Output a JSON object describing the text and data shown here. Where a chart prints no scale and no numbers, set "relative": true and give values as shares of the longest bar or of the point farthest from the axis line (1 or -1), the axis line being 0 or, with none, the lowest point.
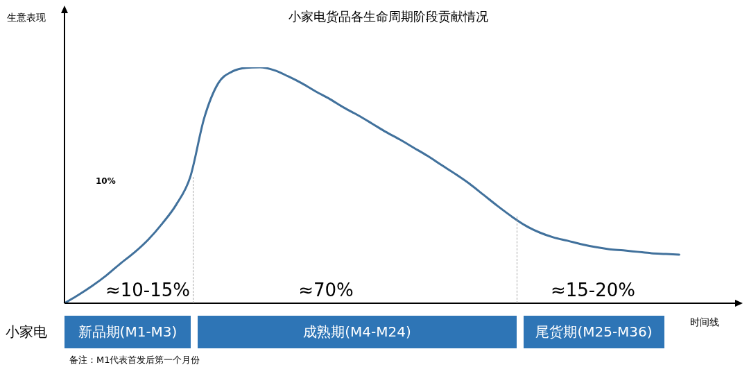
{
  "chart_data": {
    "type": "line",
    "relative": true,
    "title": "小家电货品各生命周期阶段贡献情况",
    "ylabel": "生意表现",
    "xlabel": "时间线",
    "categories": [
      null,
      null,
      null,
      null,
      null,
      null,
      null,
      null,
      null,
      null,
      null,
      null,
      null,
      null,
      null,
      null,
      null,
      null,
      null,
      null,
      null,
      null,
      null,
      null,
      null,
      null,
      null,
      null,
      null,
      null,
      null,
      null,
      null,
      null,
      null,
      null,
      null,
      null,
      null,
      null,
      null,
      null,
      null,
      null,
      null,
      null,
      null,
      null,
      null
    ],
    "series": [
      {
        "color": "#41719c",
        "values": [
          0,
          0.035,
          0.074,
          0.118,
          0.168,
          0.215,
          0.27,
          0.338,
          0.418,
          0.535,
          0.785,
          0.932,
          0.982,
          0.998,
          1,
          0.988,
          0.962,
          0.932,
          0.897,
          0.865,
          0.829,
          0.797,
          0.762,
          0.726,
          0.694,
          0.659,
          0.624,
          0.585,
          0.547,
          0.506,
          0.459,
          0.412,
          0.368,
          0.329,
          0.3,
          0.279,
          0.265,
          0.25,
          0.238,
          0.229,
          0.224,
          0.218,
          0.212,
          0.209,
          0.206,
          null,
          null,
          null,
          null
        ]
      }
    ],
    "marker": "none",
    "line_style": "solid",
    "legend": false,
    "annotations": [
      "10%",
      "≈10-15%",
      "≈70%",
      "≈15-20%",
      "小家电",
      "新品期(M1-M3)",
      "成熟期(M4-M24)",
      "尾货期(M25-M36)",
      "备注：M1代表首发后第一个月份"
    ]
  }
}
